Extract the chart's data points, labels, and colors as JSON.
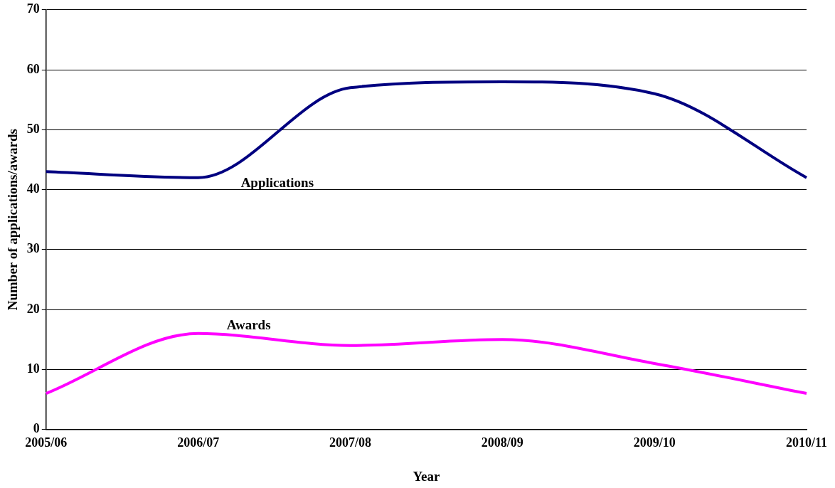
{
  "chart_data": {
    "type": "line",
    "xlabel": "Year",
    "ylabel": "Number of applications/awards",
    "categories": [
      "2005/06",
      "2006/07",
      "2007/08",
      "2008/09",
      "2009/10",
      "2010/11"
    ],
    "series": [
      {
        "name": "Applications",
        "color": "#000080",
        "values": [
          43,
          42,
          57,
          58,
          56,
          42
        ]
      },
      {
        "name": "Awards",
        "color": "#ff00ff",
        "values": [
          6,
          16,
          14,
          15,
          11,
          6
        ]
      }
    ],
    "ylim": [
      0,
      70
    ],
    "yticks": [
      0,
      10,
      20,
      30,
      40,
      50,
      60,
      70
    ],
    "grid": "y",
    "legend": false,
    "marker": "none",
    "line_style": "solid"
  }
}
